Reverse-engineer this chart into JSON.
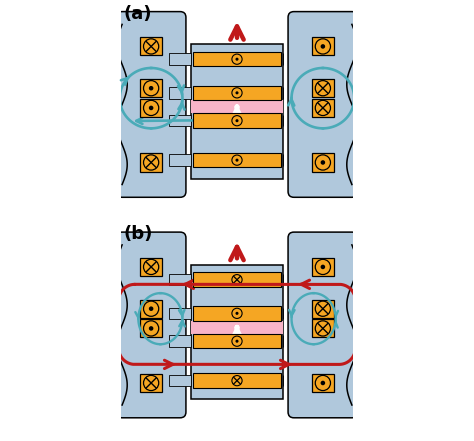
{
  "bg_color": "#b0c8dc",
  "gold_color": "#f5a623",
  "pink_color": "#f8b4c8",
  "cyan_color": "#4aabb8",
  "red_color": "#c0191a",
  "white_color": "#ffffff",
  "black_color": "#111111",
  "label_a": "(a)",
  "label_b": "(b)",
  "fig_width": 4.74,
  "fig_height": 4.41,
  "dpi": 100
}
